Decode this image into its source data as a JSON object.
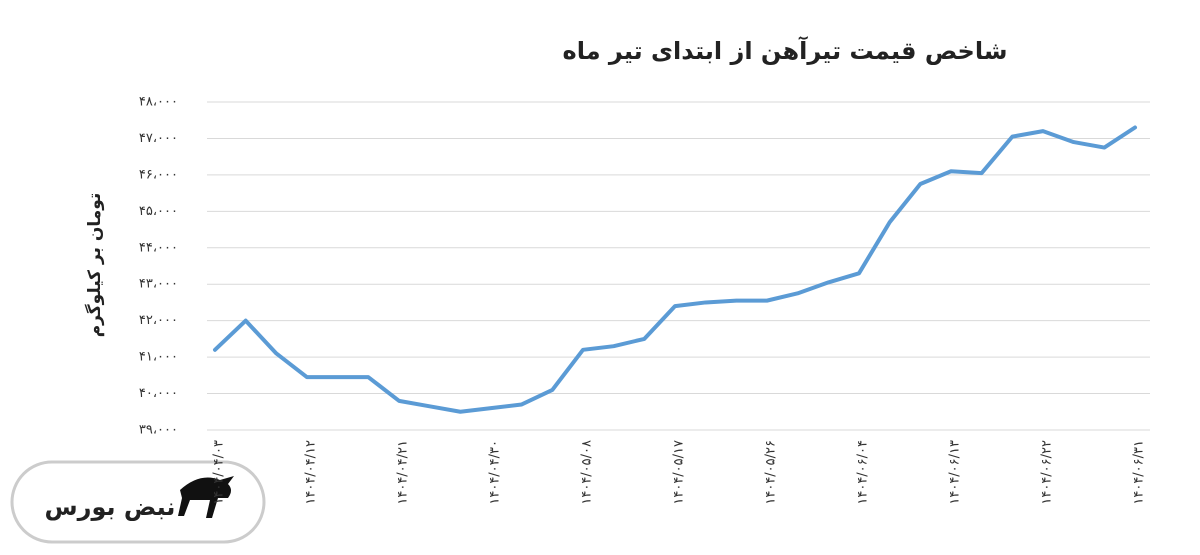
{
  "chart_data": {
    "type": "line",
    "title": "شاخص قیمت تیرآهن از ابتدای تیر ماه",
    "y_label": "تومان بر کیلوگرم",
    "categories": [
      "۱۴۰۴/۰۴/۰۳",
      null,
      null,
      "۱۴۰۴/۰۴/۱۲",
      null,
      null,
      "۱۴۰۴/۰۴/۲۱",
      null,
      null,
      "۱۴۰۴/۰۴/۳۰",
      null,
      null,
      "۱۴۰۴/۰۵/۰۸",
      null,
      null,
      "۱۴۰۴/۰۵/۱۷",
      null,
      null,
      "۱۴۰۴/۰۵/۲۶",
      null,
      null,
      "۱۴۰۴/۰۶/۰۴",
      null,
      null,
      "۱۴۰۴/۰۶/۱۳",
      null,
      null,
      "۱۴۰۴/۰۶/۲۲",
      null,
      null,
      "۱۴۰۴/۰۶/۳۱"
    ],
    "series": [
      {
        "name": "شاخص قیمت تیرآهن",
        "color": "#5b9bd5",
        "values": [
          41200,
          42000,
          41100,
          40450,
          40450,
          40450,
          39800,
          39650,
          39500,
          39600,
          39700,
          40100,
          41200,
          41300,
          41500,
          42400,
          42500,
          42550,
          42550,
          42750,
          43050,
          43300,
          44700,
          45750,
          46100,
          46050,
          47050,
          47200,
          46900,
          46750,
          47300
        ]
      }
    ],
    "ylim": [
      39000,
      48000
    ],
    "yticks": [
      {
        "value": 39000,
        "label": "۳۹،۰۰۰"
      },
      {
        "value": 40000,
        "label": "۴۰،۰۰۰"
      },
      {
        "value": 41000,
        "label": "۴۱،۰۰۰"
      },
      {
        "value": 42000,
        "label": "۴۲،۰۰۰"
      },
      {
        "value": 43000,
        "label": "۴۳،۰۰۰"
      },
      {
        "value": 44000,
        "label": "۴۴،۰۰۰"
      },
      {
        "value": 45000,
        "label": "۴۵،۰۰۰"
      },
      {
        "value": 46000,
        "label": "۴۶،۰۰۰"
      },
      {
        "value": 47000,
        "label": "۴۷،۰۰۰"
      },
      {
        "value": 48000,
        "label": "۴۸،۰۰۰"
      }
    ],
    "grid": true
  },
  "logo": "نبض بورس"
}
